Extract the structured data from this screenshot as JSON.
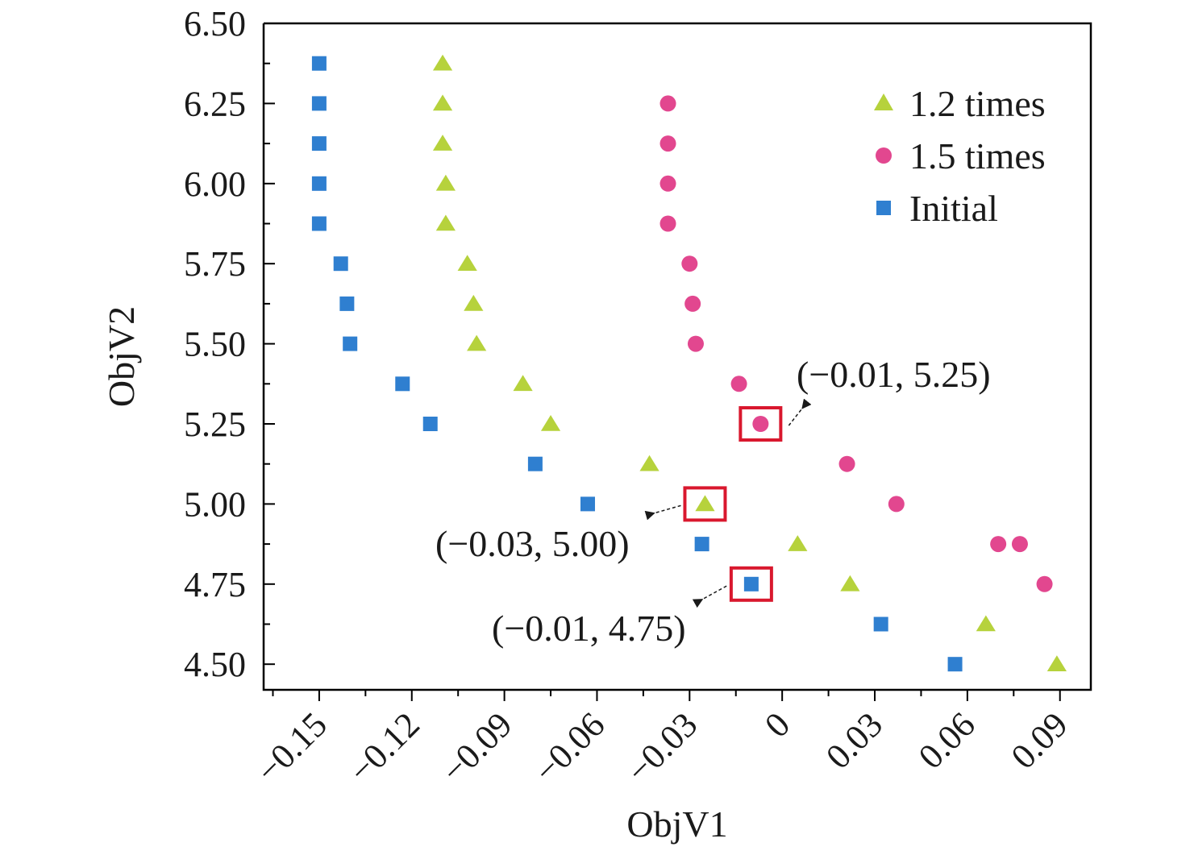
{
  "chart_data": {
    "type": "scatter",
    "xlabel": "ObjV1",
    "ylabel": "ObjV2",
    "xlim": [
      -0.168,
      0.1
    ],
    "ylim": [
      4.42,
      6.5
    ],
    "xticks": [
      {
        "v": -0.15,
        "label": "−0.15"
      },
      {
        "v": -0.12,
        "label": "−0.12"
      },
      {
        "v": -0.09,
        "label": "−0.09"
      },
      {
        "v": -0.06,
        "label": "−0.06"
      },
      {
        "v": -0.03,
        "label": "−0.03"
      },
      {
        "v": 0,
        "label": "0"
      },
      {
        "v": 0.03,
        "label": "0.03"
      },
      {
        "v": 0.06,
        "label": "0.06"
      },
      {
        "v": 0.09,
        "label": "0.09"
      }
    ],
    "yticks": [
      {
        "v": 4.5,
        "label": "4.50"
      },
      {
        "v": 4.75,
        "label": "4.75"
      },
      {
        "v": 5.0,
        "label": "5.00"
      },
      {
        "v": 5.25,
        "label": "5.25"
      },
      {
        "v": 5.5,
        "label": "5.50"
      },
      {
        "v": 5.75,
        "label": "5.75"
      },
      {
        "v": 6.0,
        "label": "6.00"
      },
      {
        "v": 6.25,
        "label": "6.25"
      },
      {
        "v": 6.5,
        "label": "6.50"
      }
    ],
    "grid": false,
    "legend_position": "top-right",
    "series": [
      {
        "name": "1.2 times",
        "marker": "triangle",
        "color": "#b6d23c",
        "points": [
          [
            -0.11,
            6.375
          ],
          [
            -0.11,
            6.25
          ],
          [
            -0.11,
            6.125
          ],
          [
            -0.109,
            6.0
          ],
          [
            -0.109,
            5.875
          ],
          [
            -0.102,
            5.75
          ],
          [
            -0.1,
            5.625
          ],
          [
            -0.099,
            5.5
          ],
          [
            -0.084,
            5.375
          ],
          [
            -0.075,
            5.25
          ],
          [
            -0.043,
            5.125
          ],
          [
            -0.025,
            5.0
          ],
          [
            0.005,
            4.875
          ],
          [
            0.022,
            4.75
          ],
          [
            0.066,
            4.625
          ],
          [
            0.089,
            4.5
          ]
        ]
      },
      {
        "name": "1.5 times",
        "marker": "circle",
        "color": "#e2478f",
        "points": [
          [
            -0.037,
            6.25
          ],
          [
            -0.037,
            6.125
          ],
          [
            -0.037,
            6.0
          ],
          [
            -0.037,
            5.875
          ],
          [
            -0.03,
            5.75
          ],
          [
            -0.029,
            5.625
          ],
          [
            -0.028,
            5.5
          ],
          [
            -0.014,
            5.375
          ],
          [
            -0.007,
            5.25
          ],
          [
            0.021,
            5.125
          ],
          [
            0.037,
            5.0
          ],
          [
            0.07,
            4.875
          ],
          [
            0.077,
            4.875
          ],
          [
            0.085,
            4.75
          ]
        ]
      },
      {
        "name": "Initial",
        "marker": "square",
        "color": "#2f7fd0",
        "points": [
          [
            -0.15,
            6.375
          ],
          [
            -0.15,
            6.25
          ],
          [
            -0.15,
            6.125
          ],
          [
            -0.15,
            6.0
          ],
          [
            -0.15,
            5.875
          ],
          [
            -0.143,
            5.75
          ],
          [
            -0.141,
            5.625
          ],
          [
            -0.14,
            5.5
          ],
          [
            -0.123,
            5.375
          ],
          [
            -0.114,
            5.25
          ],
          [
            -0.08,
            5.125
          ],
          [
            -0.063,
            5.0
          ],
          [
            -0.026,
            4.875
          ],
          [
            -0.01,
            4.75
          ],
          [
            0.032,
            4.625
          ],
          [
            0.056,
            4.5
          ]
        ]
      }
    ],
    "annotations": [
      {
        "text": "(−0.01, 5.25)",
        "point": [
          -0.007,
          5.25
        ],
        "box_color": "#d9182e"
      },
      {
        "text": "(−0.03, 5.00)",
        "point": [
          -0.025,
          5.0
        ],
        "box_color": "#d9182e"
      },
      {
        "text": "(−0.01, 4.75)",
        "point": [
          -0.01,
          4.75
        ],
        "box_color": "#d9182e"
      }
    ]
  }
}
